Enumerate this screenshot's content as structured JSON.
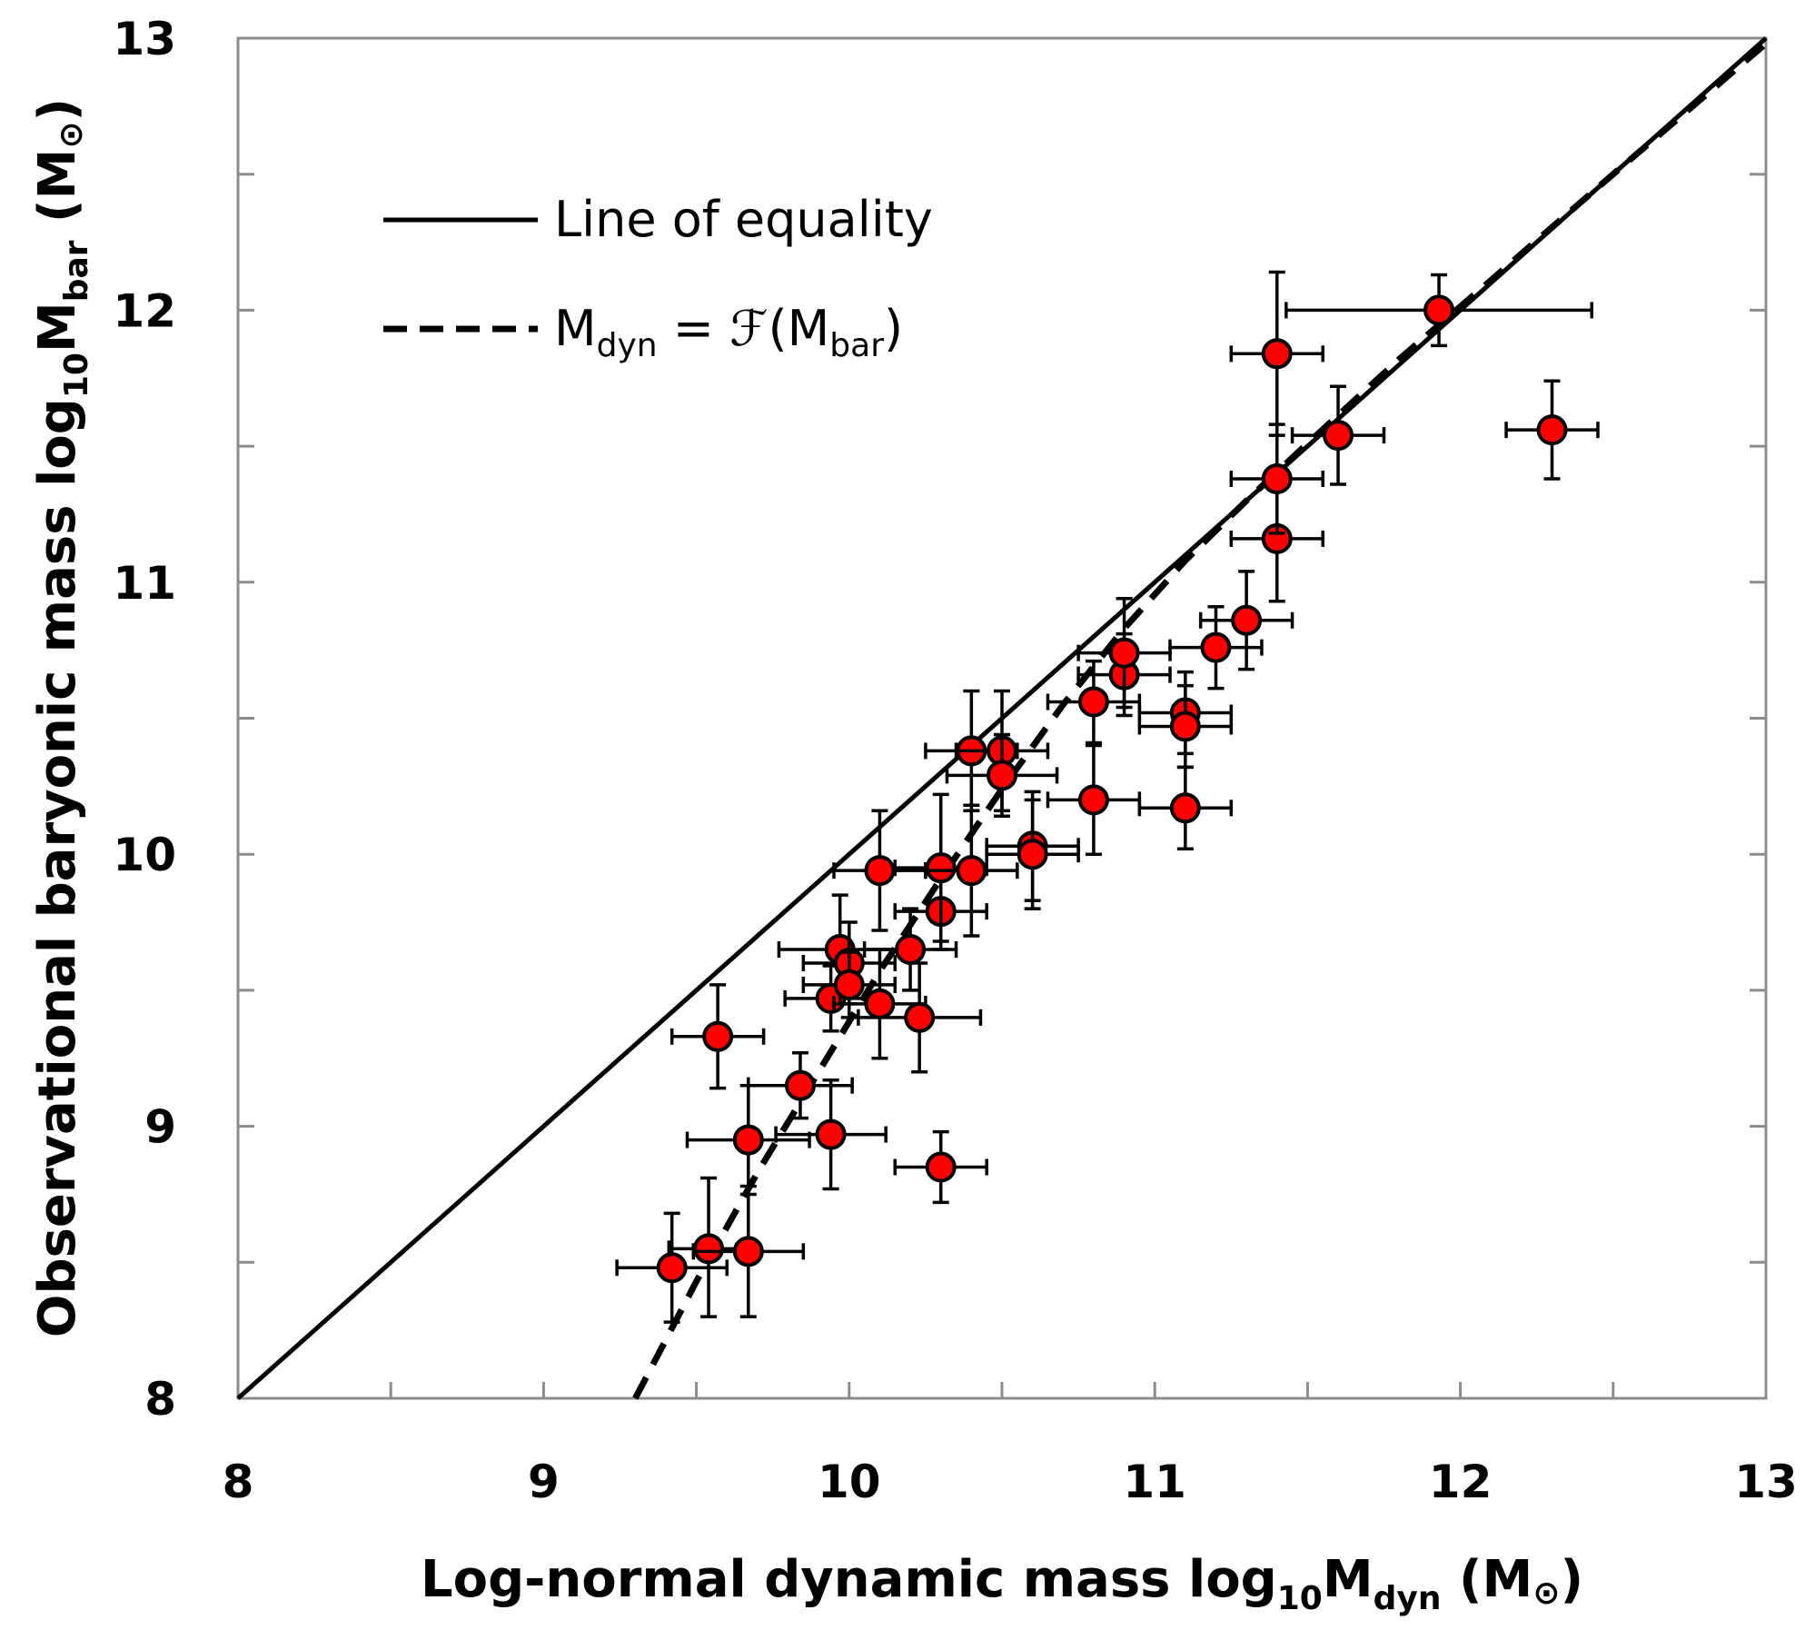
{
  "chart_data": {
    "type": "scatter",
    "xlabel": {
      "base": "Log-normal dynamic mass log",
      "sub1": "10",
      "mid": "M",
      "sub2": "dyn",
      "unit": " (M",
      "sun": "⊙",
      "end": ")"
    },
    "ylabel": {
      "base": "Observational  baryonic mass log",
      "sub1": "10",
      "mid": "M",
      "sub2": "bar",
      "unit": " (M",
      "sun": "⊙",
      "end": ")"
    },
    "xlim": [
      8,
      13
    ],
    "ylim": [
      8,
      13
    ],
    "x_ticks": [
      "8",
      "9",
      "10",
      "11",
      "12",
      "13"
    ],
    "y_ticks": [
      "8",
      "9",
      "10",
      "11",
      "12",
      "13"
    ],
    "grid": false,
    "legend": {
      "position": "top-left",
      "equality": "Line of equality",
      "fit": {
        "m1": "M",
        "s1": "dyn",
        "eq": " = ",
        "f": "ℱ",
        "open": "(M",
        "s2": "bar",
        "close": ")"
      }
    },
    "colors": {
      "marker": "#ff0000",
      "stroke": "#000000",
      "frame": "#8c8c8c"
    },
    "series": [
      {
        "kind": "points",
        "points": [
          {
            "x": 9.42,
            "y": 8.48,
            "xerr": [
              0.18,
              0.18
            ],
            "yerr": [
              0.2,
              0.2
            ]
          },
          {
            "x": 9.54,
            "y": 8.55,
            "xerr": [
              0.13,
              0.13
            ],
            "yerr": [
              0.25,
              0.26
            ]
          },
          {
            "x": 9.67,
            "y": 8.54,
            "xerr": [
              0.18,
              0.18
            ],
            "yerr": [
              0.24,
              0.24
            ]
          },
          {
            "x": 9.57,
            "y": 9.33,
            "xerr": [
              0.15,
              0.15
            ],
            "yerr": [
              0.19,
              0.19
            ]
          },
          {
            "x": 9.67,
            "y": 8.95,
            "xerr": [
              0.2,
              0.2
            ],
            "yerr": [
              0.2,
              0.2
            ]
          },
          {
            "x": 9.84,
            "y": 9.15,
            "xerr": [
              0.17,
              0.17
            ],
            "yerr": [
              0.12,
              0.12
            ]
          },
          {
            "x": 9.94,
            "y": 8.97,
            "xerr": [
              0.18,
              0.18
            ],
            "yerr": [
              0.2,
              0.2
            ]
          },
          {
            "x": 9.94,
            "y": 9.47,
            "xerr": [
              0.15,
              0.15
            ],
            "yerr": [
              0.12,
              0.12
            ]
          },
          {
            "x": 9.97,
            "y": 9.65,
            "xerr": [
              0.2,
              0.2
            ],
            "yerr": [
              0.2,
              0.2
            ]
          },
          {
            "x": 10.0,
            "y": 9.6,
            "xerr": [
              0.15,
              0.15
            ],
            "yerr": [
              0.15,
              0.15
            ]
          },
          {
            "x": 10.0,
            "y": 9.52,
            "xerr": [
              0.15,
              0.15
            ],
            "yerr": [
              0.12,
              0.12
            ]
          },
          {
            "x": 10.1,
            "y": 9.45,
            "xerr": [
              0.15,
              0.15
            ],
            "yerr": [
              0.2,
              0.2
            ]
          },
          {
            "x": 10.1,
            "y": 9.94,
            "xerr": [
              0.15,
              0.15
            ],
            "yerr": [
              0.22,
              0.22
            ]
          },
          {
            "x": 10.2,
            "y": 9.65,
            "xerr": [
              0.15,
              0.15
            ],
            "yerr": [
              0.15,
              0.15
            ]
          },
          {
            "x": 10.23,
            "y": 9.4,
            "xerr": [
              0.2,
              0.2
            ],
            "yerr": [
              0.2,
              0.2
            ]
          },
          {
            "x": 10.3,
            "y": 9.79,
            "xerr": [
              0.15,
              0.15
            ],
            "yerr": [
              0.14,
              0.14
            ]
          },
          {
            "x": 10.3,
            "y": 9.95,
            "xerr": [
              0.15,
              0.15
            ],
            "yerr": [
              0.27,
              0.27
            ]
          },
          {
            "x": 10.3,
            "y": 8.85,
            "xerr": [
              0.15,
              0.15
            ],
            "yerr": [
              0.13,
              0.13
            ]
          },
          {
            "x": 10.4,
            "y": 9.94,
            "xerr": [
              0.15,
              0.15
            ],
            "yerr": [
              0.24,
              0.24
            ]
          },
          {
            "x": 10.4,
            "y": 10.38,
            "xerr": [
              0.15,
              0.15
            ],
            "yerr": [
              0.22,
              0.22
            ]
          },
          {
            "x": 10.5,
            "y": 10.38,
            "xerr": [
              0.15,
              0.15
            ],
            "yerr": [
              0.22,
              0.22
            ]
          },
          {
            "x": 10.5,
            "y": 10.29,
            "xerr": [
              0.18,
              0.18
            ],
            "yerr": [
              0.15,
              0.15
            ]
          },
          {
            "x": 10.6,
            "y": 10.03,
            "xerr": [
              0.15,
              0.15
            ],
            "yerr": [
              0.2,
              0.2
            ]
          },
          {
            "x": 10.6,
            "y": 10.0,
            "xerr": [
              0.15,
              0.15
            ],
            "yerr": [
              0.2,
              0.2
            ]
          },
          {
            "x": 10.8,
            "y": 10.2,
            "xerr": [
              0.15,
              0.15
            ],
            "yerr": [
              0.2,
              0.2
            ]
          },
          {
            "x": 10.8,
            "y": 10.56,
            "xerr": [
              0.15,
              0.15
            ],
            "yerr": [
              0.15,
              0.15
            ]
          },
          {
            "x": 10.9,
            "y": 10.66,
            "xerr": [
              0.15,
              0.15
            ],
            "yerr": [
              0.15,
              0.15
            ]
          },
          {
            "x": 10.9,
            "y": 10.74,
            "xerr": [
              0.15,
              0.15
            ],
            "yerr": [
              0.2,
              0.2
            ]
          },
          {
            "x": 11.1,
            "y": 10.52,
            "xerr": [
              0.15,
              0.15
            ],
            "yerr": [
              0.15,
              0.15
            ]
          },
          {
            "x": 11.1,
            "y": 10.47,
            "xerr": [
              0.15,
              0.15
            ],
            "yerr": [
              0.15,
              0.15
            ]
          },
          {
            "x": 11.1,
            "y": 10.17,
            "xerr": [
              0.15,
              0.15
            ],
            "yerr": [
              0.15,
              0.15
            ]
          },
          {
            "x": 11.2,
            "y": 10.76,
            "xerr": [
              0.15,
              0.15
            ],
            "yerr": [
              0.15,
              0.15
            ]
          },
          {
            "x": 11.3,
            "y": 10.86,
            "xerr": [
              0.15,
              0.15
            ],
            "yerr": [
              0.18,
              0.18
            ]
          },
          {
            "x": 11.4,
            "y": 11.16,
            "xerr": [
              0.15,
              0.15
            ],
            "yerr": [
              0.23,
              0.23
            ]
          },
          {
            "x": 11.4,
            "y": 11.38,
            "xerr": [
              0.15,
              0.15
            ],
            "yerr": [
              0.2,
              0.2
            ]
          },
          {
            "x": 11.4,
            "y": 11.84,
            "xerr": [
              0.15,
              0.15
            ],
            "yerr": [
              0.3,
              0.3
            ]
          },
          {
            "x": 11.6,
            "y": 11.54,
            "xerr": [
              0.15,
              0.15
            ],
            "yerr": [
              0.18,
              0.18
            ]
          },
          {
            "x": 11.93,
            "y": 12.0,
            "xerr": [
              0.5,
              0.5
            ],
            "yerr": [
              0.13,
              0.13
            ]
          },
          {
            "x": 12.3,
            "y": 11.56,
            "xerr": [
              0.15,
              0.15
            ],
            "yerr": [
              0.18,
              0.18
            ]
          }
        ]
      },
      {
        "kind": "equality-line",
        "x": [
          8,
          13
        ],
        "y": [
          8,
          13
        ]
      },
      {
        "kind": "fit-curve",
        "x": [
          9.3,
          9.5,
          9.7,
          9.9,
          10.1,
          10.3,
          10.5,
          10.7,
          10.9,
          11.1,
          11.3,
          11.5,
          11.8,
          12.1,
          12.5,
          13.0
        ],
        "y": [
          8.0,
          8.43,
          8.83,
          9.2,
          9.57,
          9.91,
          10.24,
          10.55,
          10.83,
          11.08,
          11.3,
          11.51,
          11.82,
          12.11,
          12.5,
          12.98
        ]
      }
    ]
  }
}
